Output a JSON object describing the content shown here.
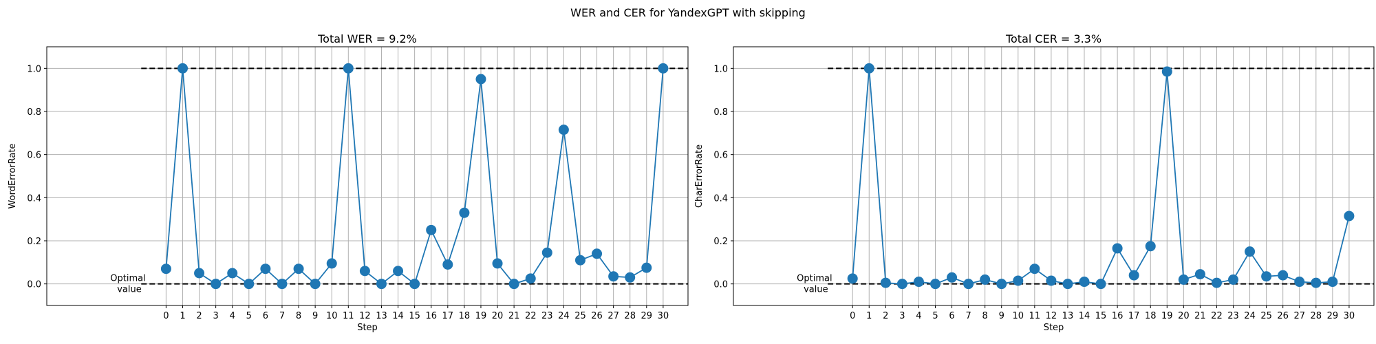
{
  "figure": {
    "suptitle": "WER and CER for YandexGPT with skipping"
  },
  "chart_data": [
    {
      "type": "line",
      "title": "Total WER = 9.2%",
      "xlabel": "Step",
      "ylabel": "WordErrorRate",
      "x": [
        0,
        1,
        2,
        3,
        4,
        5,
        6,
        7,
        8,
        9,
        10,
        11,
        12,
        13,
        14,
        15,
        16,
        17,
        18,
        19,
        20,
        21,
        22,
        23,
        24,
        25,
        26,
        27,
        28,
        29,
        30
      ],
      "x_tick_labels": [
        "0",
        "1",
        "2",
        "3",
        "4",
        "5",
        "6",
        "7",
        "8",
        "9",
        "10",
        "11",
        "12",
        "13",
        "14",
        "15",
        "16",
        "17",
        "18",
        "19",
        "20",
        "21",
        "22",
        "23",
        "24",
        "25",
        "26",
        "27",
        "28",
        "29",
        "30"
      ],
      "series": [
        {
          "values": [
            0.07,
            1.0,
            0.05,
            0.0,
            0.05,
            0.0,
            0.07,
            0.0,
            0.07,
            0.0,
            0.095,
            1.0,
            0.06,
            0.0,
            0.06,
            0.0,
            0.25,
            0.09,
            0.33,
            0.95,
            0.095,
            0.0,
            0.025,
            0.145,
            0.715,
            0.11,
            0.14,
            0.035,
            0.03,
            0.075,
            1.0
          ]
        }
      ],
      "y_ticks": [
        "0.0",
        "0.2",
        "0.4",
        "0.6",
        "0.8",
        "1.0"
      ],
      "ylim": [
        -0.1,
        1.1
      ],
      "xlim": [
        -7.2,
        31.5
      ],
      "reference_lines": [
        {
          "y": 1.0,
          "style": "dashed",
          "color": "#000000"
        },
        {
          "y": 0.0,
          "style": "dashed",
          "color": "#000000"
        }
      ],
      "annotation": "Optimal\nvalue",
      "grid": true,
      "color": "#1f77b4"
    },
    {
      "type": "line",
      "title": "Total CER = 3.3%",
      "xlabel": "Step",
      "ylabel": "CharErrorRate",
      "x": [
        0,
        1,
        2,
        3,
        4,
        5,
        6,
        7,
        8,
        9,
        10,
        11,
        12,
        13,
        14,
        15,
        16,
        17,
        18,
        19,
        20,
        21,
        22,
        23,
        24,
        25,
        26,
        27,
        28,
        29,
        30
      ],
      "x_tick_labels": [
        "0",
        "1",
        "2",
        "3",
        "4",
        "5",
        "6",
        "7",
        "8",
        "9",
        "10",
        "11",
        "12",
        "13",
        "14",
        "15",
        "16",
        "17",
        "18",
        "19",
        "20",
        "21",
        "22",
        "23",
        "24",
        "25",
        "26",
        "27",
        "28",
        "29",
        "30"
      ],
      "series": [
        {
          "values": [
            0.025,
            1.0,
            0.005,
            0.0,
            0.01,
            0.0,
            0.03,
            0.0,
            0.02,
            0.0,
            0.015,
            0.07,
            0.015,
            0.0,
            0.01,
            0.0,
            0.165,
            0.04,
            0.175,
            0.985,
            0.02,
            0.045,
            0.005,
            0.02,
            0.15,
            0.035,
            0.04,
            0.01,
            0.005,
            0.01,
            0.315
          ]
        }
      ],
      "y_ticks": [
        "0.0",
        "0.2",
        "0.4",
        "0.6",
        "0.8",
        "1.0"
      ],
      "ylim": [
        -0.1,
        1.1
      ],
      "xlim": [
        -7.2,
        31.5
      ],
      "reference_lines": [
        {
          "y": 1.0,
          "style": "dashed",
          "color": "#000000"
        },
        {
          "y": 0.0,
          "style": "dashed",
          "color": "#000000"
        }
      ],
      "annotation": "Optimal\nvalue",
      "grid": true,
      "color": "#1f77b4"
    }
  ]
}
